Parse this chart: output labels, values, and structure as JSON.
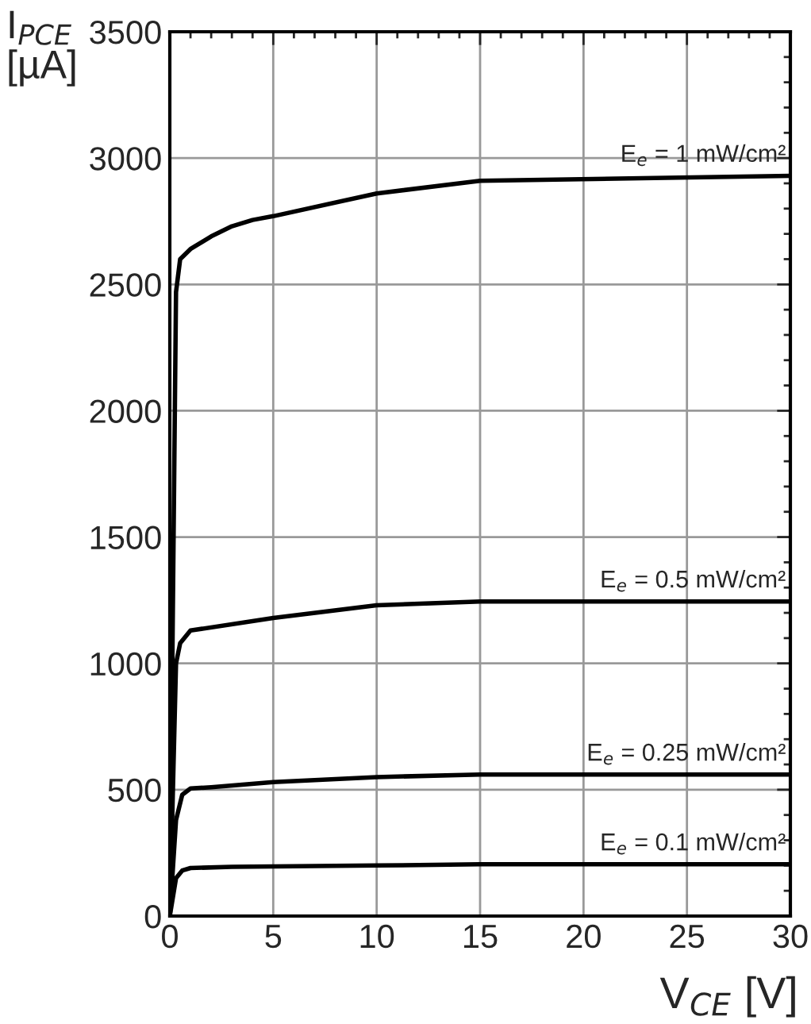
{
  "chart_data": {
    "type": "line",
    "xlabel": "V$_{CE}$ [V]",
    "ylabel": "I$_{PCE}$\n[µA]",
    "xlim": [
      0,
      30
    ],
    "xticks": [
      0,
      5,
      10,
      15,
      20,
      25,
      30
    ],
    "ylim": [
      0,
      3500
    ],
    "yticks": [
      0,
      500,
      1000,
      1500,
      2000,
      2500,
      3000,
      3500
    ],
    "grid": true,
    "legend": false,
    "marker": "none",
    "line_style": "solid",
    "series": [
      {
        "name": "E$_{e}$ = 1 mW/cm²",
        "color": "#000000",
        "x": [
          0,
          0.3,
          0.5,
          1,
          2,
          3,
          4,
          5,
          10,
          15,
          30
        ],
        "values": [
          0,
          2470,
          2600,
          2640,
          2690,
          2730,
          2755,
          2770,
          2860,
          2910,
          2930
        ]
      },
      {
        "name": "E$_{e}$ = 0.5 mW/cm²",
        "color": "#000000",
        "x": [
          0,
          0.3,
          0.5,
          1,
          5,
          10,
          15,
          30
        ],
        "values": [
          0,
          1000,
          1080,
          1130,
          1180,
          1230,
          1245,
          1245
        ]
      },
      {
        "name": "E$_{e}$ = 0.25 mW/cm²",
        "color": "#000000",
        "x": [
          0,
          0.3,
          0.6,
          1,
          2,
          5,
          10,
          15,
          30
        ],
        "values": [
          0,
          380,
          480,
          505,
          510,
          530,
          550,
          560,
          560
        ]
      },
      {
        "name": "E$_{e}$ = 0.1 mW/cm²",
        "color": "#000000",
        "x": [
          0,
          0.3,
          0.6,
          1,
          3,
          10,
          15,
          30
        ],
        "values": [
          0,
          150,
          180,
          190,
          195,
          200,
          205,
          205
        ]
      }
    ]
  }
}
